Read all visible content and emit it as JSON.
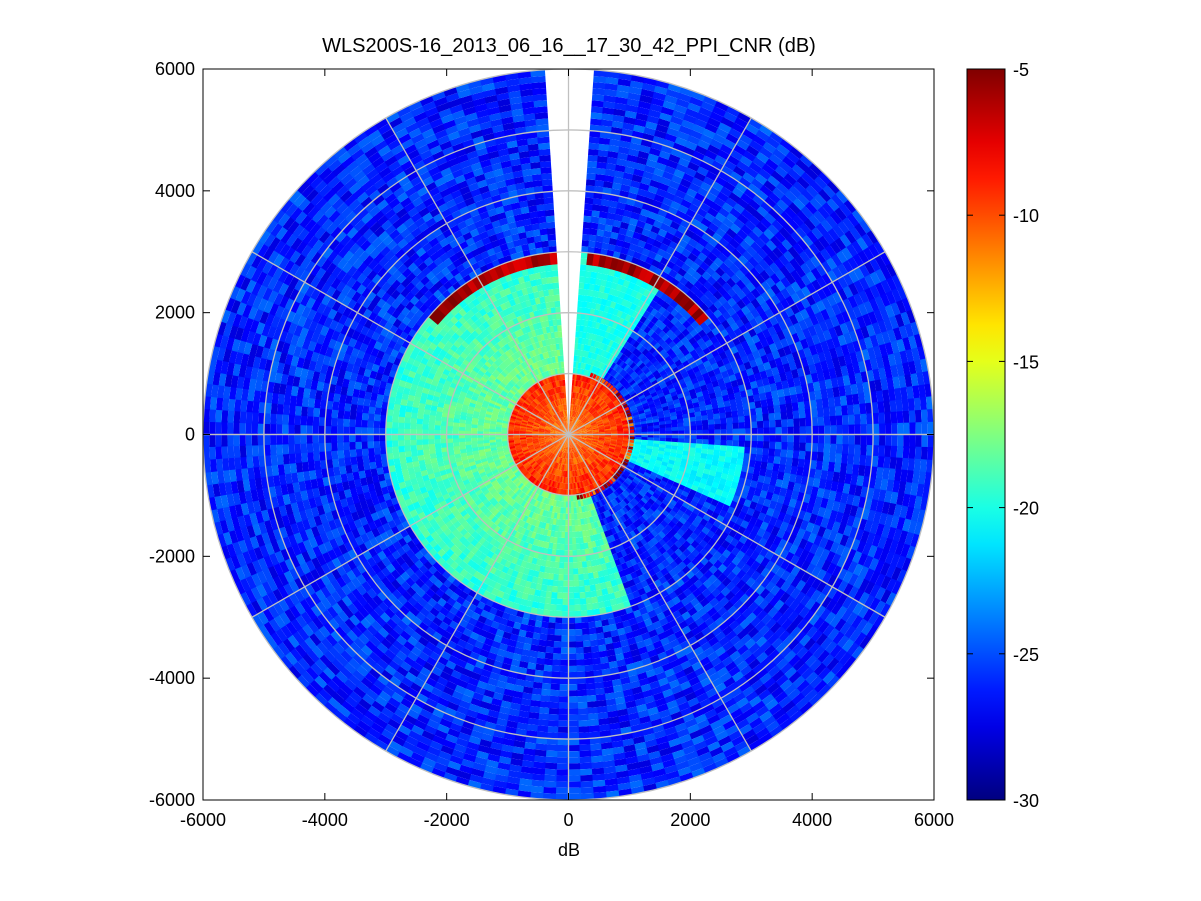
{
  "chart_data": {
    "type": "heatmap",
    "subtype": "polar-ppi-scan",
    "title": "WLS200S-16_2013_06_16__17_30_42_PPI_CNR (dB)",
    "xlabel": "dB",
    "ylabel": "",
    "xlim": [
      -6000,
      6000
    ],
    "ylim": [
      -6000,
      6000
    ],
    "x_ticks": [
      -6000,
      -4000,
      -2000,
      0,
      2000,
      4000,
      6000
    ],
    "y_ticks": [
      -6000,
      -4000,
      -2000,
      0,
      2000,
      4000,
      6000
    ],
    "x_tick_labels": [
      "-6000",
      "-4000",
      "-2000",
      "0",
      "2000",
      "4000",
      "6000"
    ],
    "y_tick_labels": [
      "-6000",
      "-4000",
      "-2000",
      "0",
      "2000",
      "4000",
      "6000"
    ],
    "max_range": 6000,
    "polar_grid": {
      "ring_step": 1000,
      "spoke_step_deg": 30,
      "color": "#c0c0c0"
    },
    "colorbar": {
      "colormap": "jet",
      "clim": [
        -30,
        -5
      ],
      "ticks": [
        -5,
        -10,
        -15,
        -20,
        -25,
        -30
      ],
      "tick_labels": [
        "-5",
        "-10",
        "-15",
        "-20",
        "-25",
        "-30"
      ]
    },
    "regions": [
      {
        "name": "near-field core",
        "range": [
          0,
          1000
        ],
        "cnr_db": -11
      },
      {
        "name": "middle sector (west)",
        "range": [
          1000,
          3000
        ],
        "cnr_db": -18
      },
      {
        "name": "east wedge",
        "range": [
          1000,
          3000
        ],
        "cnr_db": -20.5
      },
      {
        "name": "outer field",
        "range": [
          3000,
          6000
        ],
        "cnr_db": -26
      },
      {
        "name": "strong echo arc",
        "range": [
          2800,
          3000
        ],
        "cnr_db": -6
      }
    ],
    "no_data_sector_deg": [
      -4,
      4
    ]
  }
}
